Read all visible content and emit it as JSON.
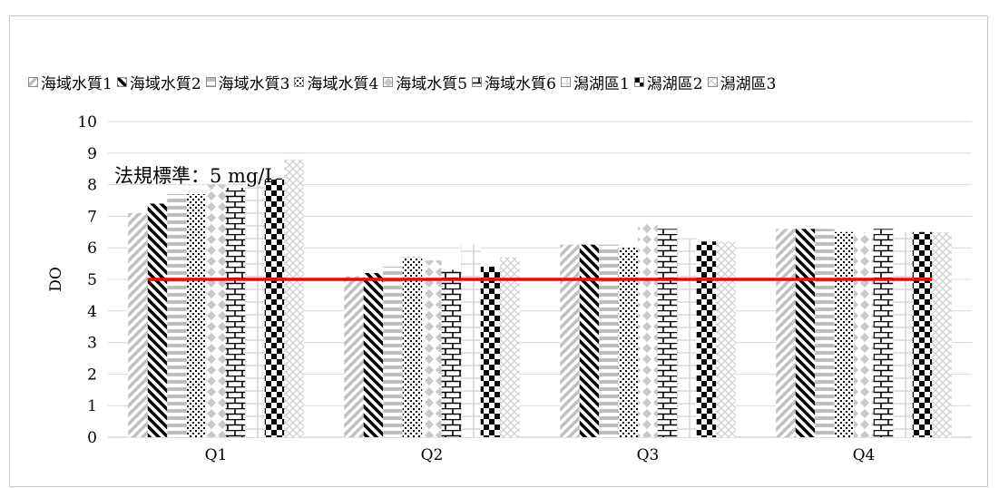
{
  "chart_data": {
    "type": "bar",
    "ylabel": "DO",
    "ylim": [
      0,
      10
    ],
    "yticks": [
      0,
      1,
      2,
      3,
      4,
      5,
      6,
      7,
      8,
      9,
      10
    ],
    "grid": true,
    "legend_position": "top",
    "categories": [
      "Q1",
      "Q2",
      "Q3",
      "Q4"
    ],
    "series": [
      {
        "name": "海域水質1",
        "pattern": "diag-up",
        "values": [
          7.1,
          5.1,
          6.1,
          6.6
        ]
      },
      {
        "name": "海域水質2",
        "pattern": "diag-down",
        "values": [
          7.4,
          5.2,
          6.1,
          6.6
        ]
      },
      {
        "name": "海域水質3",
        "pattern": "horizontal",
        "values": [
          7.7,
          5.4,
          6.1,
          6.6
        ]
      },
      {
        "name": "海域水質4",
        "pattern": "dots",
        "values": [
          7.7,
          5.7,
          6.0,
          6.5
        ]
      },
      {
        "name": "海域水質5",
        "pattern": "diamonds",
        "values": [
          8.0,
          5.6,
          6.8,
          6.5
        ]
      },
      {
        "name": "海域水質6",
        "pattern": "bricks",
        "values": [
          7.9,
          5.3,
          6.6,
          6.6
        ]
      },
      {
        "name": "潟湖區1",
        "pattern": "grid",
        "values": [
          8.2,
          6.1,
          6.3,
          6.5
        ]
      },
      {
        "name": "潟湖區2",
        "pattern": "checker",
        "values": [
          8.2,
          5.4,
          6.2,
          6.5
        ]
      },
      {
        "name": "潟湖區3",
        "pattern": "crosshatch",
        "values": [
          8.8,
          5.7,
          6.2,
          6.5
        ]
      }
    ],
    "reference_line": {
      "value": 5,
      "label": "法規標準：5 mg/L",
      "color": "#ff0000"
    }
  }
}
